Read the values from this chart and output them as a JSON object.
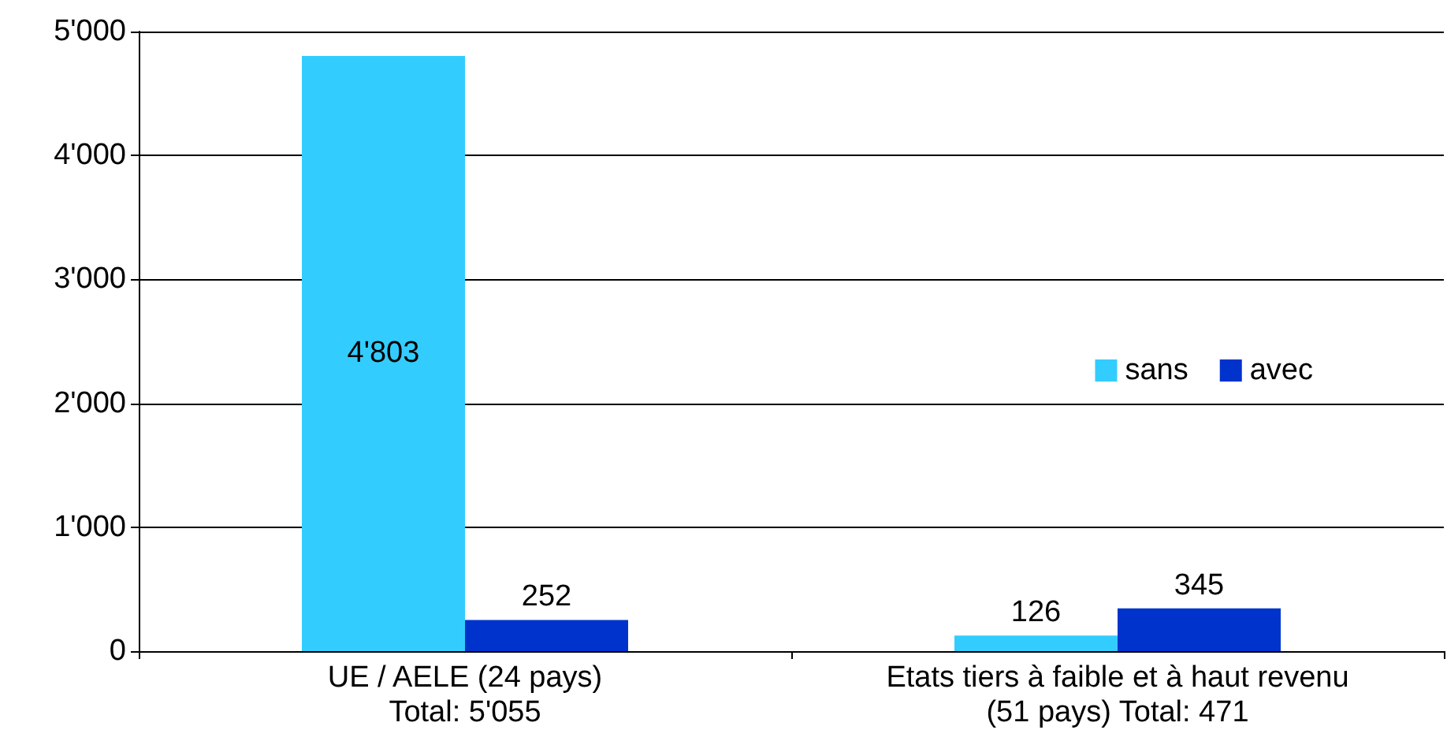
{
  "chart_data": {
    "type": "bar",
    "categories": [
      "UE / AELE (24 pays)\nTotal: 5'055",
      "Etats tiers à faible et à haut revenu\n(51 pays) Total: 471"
    ],
    "series": [
      {
        "name": "sans",
        "color": "#33ccff",
        "values": [
          4803,
          126
        ],
        "value_labels": [
          "4'803",
          "126"
        ]
      },
      {
        "name": "avec",
        "color": "#0033cc",
        "values": [
          252,
          345
        ],
        "value_labels": [
          "252",
          "345"
        ]
      }
    ],
    "ylim": [
      0,
      5000
    ],
    "yticks": [
      0,
      {
        "value": 1000,
        "label": "1'000"
      },
      {
        "value": 2000,
        "label": "2'000"
      },
      {
        "value": 3000,
        "label": "3'000"
      },
      {
        "value": 4000,
        "label": "4'000"
      },
      {
        "value": 5000,
        "label": "5'000"
      }
    ],
    "grid": "y",
    "legend": "right"
  }
}
